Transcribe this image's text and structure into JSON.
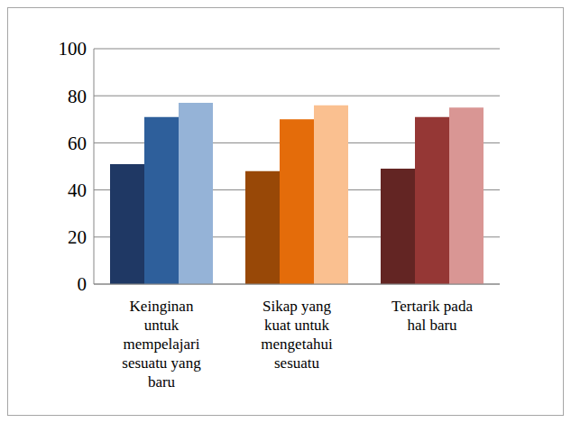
{
  "chart_data": {
    "type": "bar",
    "categories": [
      "Keinginan untuk mempelajari sesuatu yang baru",
      "Sikap yang kuat untuk mengetahui sesuatu",
      "Tertarik pada hal baru"
    ],
    "series": [
      {
        "colors": [
          "#1f3864",
          "#984807",
          "#632523"
        ],
        "values": [
          51,
          48,
          49
        ]
      },
      {
        "colors": [
          "#2e5f9b",
          "#e46c0a",
          "#953735"
        ],
        "values": [
          71,
          70,
          71
        ]
      },
      {
        "colors": [
          "#95b3d7",
          "#fac090",
          "#d99694"
        ],
        "values": [
          77,
          76,
          75
        ]
      }
    ],
    "ylim": [
      0,
      100
    ],
    "yticks": [
      0,
      20,
      40,
      60,
      80,
      100
    ],
    "grid": true
  }
}
